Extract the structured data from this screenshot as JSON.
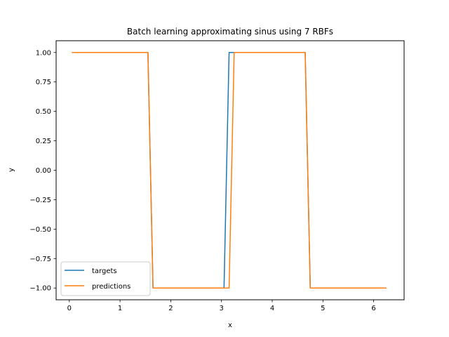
{
  "chart_data": {
    "type": "line",
    "title": "Batch learning approximating sinus using 7 RBFs",
    "xlabel": "x",
    "ylabel": "y",
    "xlim": [
      -0.26,
      6.6
    ],
    "ylim": [
      -1.1,
      1.1
    ],
    "xticks": [
      0,
      1,
      2,
      3,
      4,
      5,
      6
    ],
    "xtick_labels": [
      "0",
      "1",
      "2",
      "3",
      "4",
      "5",
      "6"
    ],
    "yticks": [
      1.0,
      0.75,
      0.5,
      0.25,
      0.0,
      -0.25,
      -0.5,
      -0.75,
      -1.0
    ],
    "ytick_labels": [
      "1.00",
      "0.75",
      "0.50",
      "0.25",
      "0.00",
      "−0.25",
      "−0.50",
      "−0.75",
      "−1.00"
    ],
    "grid": false,
    "legend_position": "lower-left",
    "series": [
      {
        "name": "targets",
        "color": "#1f77b4",
        "x": [
          0.05,
          1.55,
          1.65,
          3.05,
          3.15,
          4.65,
          4.75,
          6.25
        ],
        "y": [
          1,
          1,
          -1,
          -1,
          1,
          1,
          -1,
          -1
        ]
      },
      {
        "name": "predictions",
        "color": "#ff7f0e",
        "x": [
          0.05,
          1.55,
          1.65,
          3.15,
          3.25,
          4.65,
          4.75,
          6.25
        ],
        "y": [
          1,
          1,
          -1,
          -1,
          1,
          1,
          -1,
          -1
        ]
      }
    ]
  }
}
